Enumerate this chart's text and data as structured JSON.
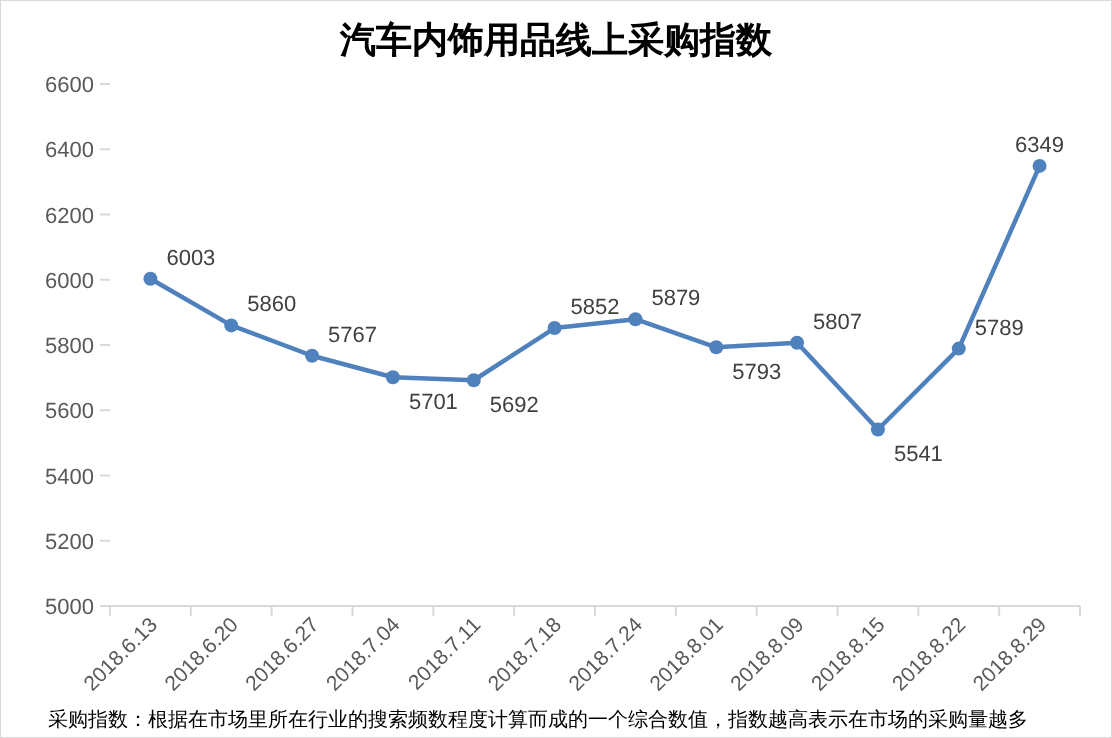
{
  "chart_data": {
    "type": "line",
    "title": "汽车内饰用品线上采购指数",
    "categories": [
      "2018.6.13",
      "2018.6.20",
      "2018.6.27",
      "2018.7.04",
      "2018.7.11",
      "2018.7.18",
      "2018.7.24",
      "2018.8.01",
      "2018.8.09",
      "2018.8.15",
      "2018.8.22",
      "2018.8.29"
    ],
    "series": [
      {
        "color": "#4f81bd",
        "values": [
          6003,
          5860,
          5767,
          5701,
          5692,
          5852,
          5879,
          5793,
          5807,
          5541,
          5789,
          6349
        ]
      }
    ],
    "ylim": [
      5000,
      6600
    ],
    "yticks": [
      5000,
      5200,
      5400,
      5600,
      5800,
      6000,
      6200,
      6400,
      6600
    ],
    "data_labels": true,
    "marker": "circle",
    "grid": false,
    "annotations": [
      "采购指数：根据在市场里所在行业的搜索频数程度计算而成的一个综合数值，指数越高表示在市场的采购量越多"
    ]
  }
}
